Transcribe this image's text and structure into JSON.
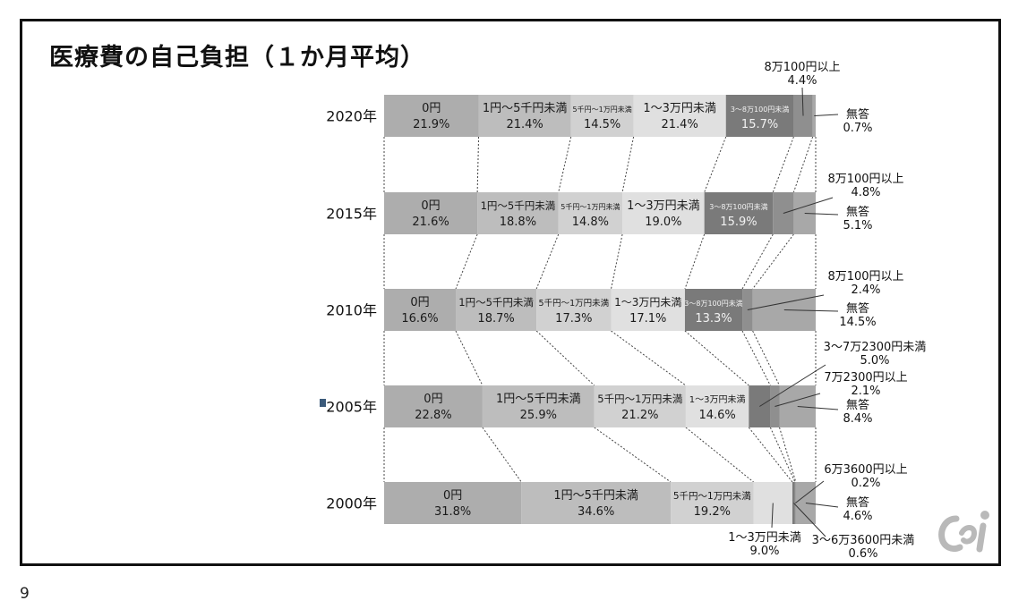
{
  "title": "医療費の自己負担（１か月平均）",
  "page_number": "9",
  "colors": {
    "zero": "#adadad",
    "under5k": "#bdbdbd",
    "5k_10k": "#d1d1d1",
    "10k_30k": "#e0e0e0",
    "30k_80k": "#7a7a7a",
    "over80k": "#8f8f8f",
    "no_answer": "#a8a8a8",
    "connector": "#444444"
  },
  "chart_data": {
    "type": "bar",
    "orientation": "horizontal-stacked-100",
    "title": "医療費の自己負担（１か月平均）",
    "xlim": [
      0,
      100
    ],
    "unit": "%",
    "rows": [
      {
        "year": "2020年",
        "segments": [
          {
            "label": "0円",
            "value": 21.9,
            "text": "21.9%",
            "color": "zero"
          },
          {
            "label": "1円～5千円未満",
            "value": 21.4,
            "text": "21.4%",
            "color": "under5k"
          },
          {
            "label": "5千円～1万円未満",
            "value": 14.5,
            "text": "14.5%",
            "color": "5k_10k"
          },
          {
            "label": "1～3万円未満",
            "value": 21.4,
            "text": "21.4%",
            "color": "10k_30k"
          },
          {
            "label": "3～8万100円未満",
            "value": 15.7,
            "text": "15.7%",
            "color": "30k_80k",
            "light": true
          },
          {
            "label": "",
            "value": 4.4,
            "text": "",
            "color": "over80k"
          },
          {
            "label": "",
            "value": 0.7,
            "text": "",
            "color": "no_answer"
          }
        ]
      },
      {
        "year": "2015年",
        "segments": [
          {
            "label": "0円",
            "value": 21.6,
            "text": "21.6%",
            "color": "zero"
          },
          {
            "label": "1円～5千円未満",
            "value": 18.8,
            "text": "18.8%",
            "color": "under5k"
          },
          {
            "label": "5千円～1万円未満",
            "value": 14.8,
            "text": "14.8%",
            "color": "5k_10k"
          },
          {
            "label": "1～3万円未満",
            "value": 19.0,
            "text": "19.0%",
            "color": "10k_30k"
          },
          {
            "label": "3～8万100円未満",
            "value": 15.9,
            "text": "15.9%",
            "color": "30k_80k",
            "light": true
          },
          {
            "label": "",
            "value": 4.8,
            "text": "",
            "color": "over80k"
          },
          {
            "label": "",
            "value": 5.1,
            "text": "",
            "color": "no_answer"
          }
        ]
      },
      {
        "year": "2010年",
        "segments": [
          {
            "label": "0円",
            "value": 16.6,
            "text": "16.6%",
            "color": "zero"
          },
          {
            "label": "1円～5千円未満",
            "value": 18.7,
            "text": "18.7%",
            "color": "under5k"
          },
          {
            "label": "5千円～1万円未満",
            "value": 17.3,
            "text": "17.3%",
            "color": "5k_10k"
          },
          {
            "label": "1～3万円未満",
            "value": 17.1,
            "text": "17.1%",
            "color": "10k_30k"
          },
          {
            "label": "3～8万100円未満",
            "value": 13.3,
            "text": "13.3%",
            "color": "30k_80k",
            "light": true
          },
          {
            "label": "",
            "value": 2.4,
            "text": "",
            "color": "over80k"
          },
          {
            "label": "",
            "value": 14.5,
            "text": "",
            "color": "no_answer"
          }
        ]
      },
      {
        "year": "2005年",
        "segments": [
          {
            "label": "0円",
            "value": 22.8,
            "text": "22.8%",
            "color": "zero"
          },
          {
            "label": "1円～5千円未満",
            "value": 25.9,
            "text": "25.9%",
            "color": "under5k"
          },
          {
            "label": "5千円～1万円未満",
            "value": 21.2,
            "text": "21.2%",
            "color": "5k_10k"
          },
          {
            "label": "1～3万円未満",
            "value": 14.6,
            "text": "14.6%",
            "color": "10k_30k"
          },
          {
            "label": "",
            "value": 5.0,
            "text": "",
            "color": "30k_80k"
          },
          {
            "label": "",
            "value": 2.1,
            "text": "",
            "color": "over80k"
          },
          {
            "label": "",
            "value": 8.4,
            "text": "",
            "color": "no_answer"
          }
        ]
      },
      {
        "year": "2000年",
        "segments": [
          {
            "label": "0円",
            "value": 31.8,
            "text": "31.8%",
            "color": "zero"
          },
          {
            "label": "1円～5千円未満",
            "value": 34.6,
            "text": "34.6%",
            "color": "under5k"
          },
          {
            "label": "5千円～1万円未満",
            "value": 19.2,
            "text": "19.2%",
            "color": "5k_10k"
          },
          {
            "label": "",
            "value": 9.0,
            "text": "",
            "color": "10k_30k"
          },
          {
            "label": "",
            "value": 0.6,
            "text": "",
            "color": "30k_80k"
          },
          {
            "label": "",
            "value": 0.2,
            "text": "",
            "color": "over80k"
          },
          {
            "label": "",
            "value": 4.6,
            "text": "",
            "color": "no_answer"
          }
        ]
      }
    ],
    "callouts": [
      {
        "row": 0,
        "segment": 5,
        "lines": [
          "8万100円以上",
          "4.4%"
        ],
        "pos": "top"
      },
      {
        "row": 0,
        "segment": 6,
        "lines": [
          "無答",
          "0.7%"
        ],
        "pos": "right"
      },
      {
        "row": 1,
        "segment": 5,
        "lines": [
          "8万100円以上",
          "4.8%"
        ],
        "pos": "upper-right"
      },
      {
        "row": 1,
        "segment": 6,
        "lines": [
          "無答",
          "5.1%"
        ],
        "pos": "right"
      },
      {
        "row": 2,
        "segment": 5,
        "lines": [
          "8万100円以上",
          "2.4%"
        ],
        "pos": "upper-right"
      },
      {
        "row": 2,
        "segment": 6,
        "lines": [
          "無答",
          "14.5%"
        ],
        "pos": "right"
      },
      {
        "row": 3,
        "segment": 4,
        "lines": [
          "3～7万2300円未満",
          "5.0%"
        ],
        "pos": "upper-right-high"
      },
      {
        "row": 3,
        "segment": 5,
        "lines": [
          "7万2300円以上",
          "2.1%"
        ],
        "pos": "upper-right"
      },
      {
        "row": 3,
        "segment": 6,
        "lines": [
          "無答",
          "8.4%"
        ],
        "pos": "right"
      },
      {
        "row": 4,
        "segment": 5,
        "lines": [
          "6万3600円以上",
          "0.2%"
        ],
        "pos": "upper-right"
      },
      {
        "row": 4,
        "segment": 6,
        "lines": [
          "無答",
          "4.6%"
        ],
        "pos": "right"
      },
      {
        "row": 4,
        "segment": 3,
        "lines": [
          "1～3万円未満",
          "9.0%"
        ],
        "pos": "below"
      },
      {
        "row": 4,
        "segment": 4,
        "lines": [
          "3～6万3600円未満",
          "0.6%"
        ],
        "pos": "below-right"
      }
    ]
  }
}
